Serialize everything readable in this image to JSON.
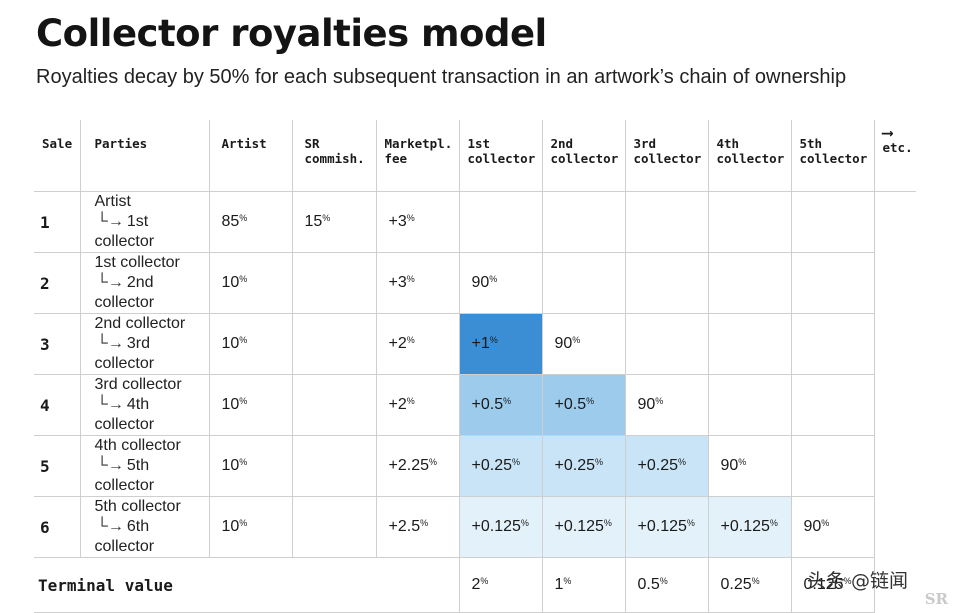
{
  "title": "Collector royalties model",
  "subtitle": "Royalties decay by 50% for each subsequent transaction in an artwork’s chain of ownership",
  "headers": {
    "sale": "Sale",
    "parties": "Parties",
    "artist": "Artist",
    "sr_line1": "SR",
    "sr_line2": "commish.",
    "mkt_line1": "Marketpl.",
    "mkt_line2": "fee",
    "c1_line1": "1st",
    "c1_line2": "collector",
    "c2_line1": "2nd",
    "c2_line2": "collector",
    "c3_line1": "3rd",
    "c3_line2": "collector",
    "c4_line1": "4th",
    "c4_line2": "collector",
    "c5_line1": "5th",
    "c5_line2": "collector",
    "etc_arrow": "⟶",
    "etc": "etc."
  },
  "rows": [
    {
      "sale": "1",
      "from": "Artist",
      "to": "1st collector",
      "artist": "85",
      "sr": "15",
      "mkt": "+3",
      "c1": "",
      "c2": "",
      "c3": "",
      "c4": "",
      "c5": ""
    },
    {
      "sale": "2",
      "from": "1st collector",
      "to": "2nd collector",
      "artist": "10",
      "sr": "",
      "mkt": "+3",
      "c1": "90",
      "c2": "",
      "c3": "",
      "c4": "",
      "c5": ""
    },
    {
      "sale": "3",
      "from": "2nd collector",
      "to": "3rd collector",
      "artist": "10",
      "sr": "",
      "mkt": "+2",
      "c1": "+1",
      "c2": "90",
      "c3": "",
      "c4": "",
      "c5": ""
    },
    {
      "sale": "4",
      "from": "3rd collector",
      "to": "4th collector",
      "artist": "10",
      "sr": "",
      "mkt": "+2",
      "c1": "+0.5",
      "c2": "+0.5",
      "c3": "90",
      "c4": "",
      "c5": ""
    },
    {
      "sale": "5",
      "from": "4th collector",
      "to": "5th collector",
      "artist": "10",
      "sr": "",
      "mkt": "+2.25",
      "c1": "+0.25",
      "c2": "+0.25",
      "c3": "+0.25",
      "c4": "90",
      "c5": ""
    },
    {
      "sale": "6",
      "from": "5th collector",
      "to": "6th collector",
      "artist": "10",
      "sr": "",
      "mkt": "+2.5",
      "c1": "+0.125",
      "c2": "+0.125",
      "c3": "+0.125",
      "c4": "+0.125",
      "c5": "90"
    }
  ],
  "terminal": {
    "label": "Terminal value",
    "c1": "2",
    "c2": "1",
    "c3": "0.5",
    "c4": "0.25",
    "c5": "0.125"
  },
  "percent_sign": "%",
  "sub_arrow": "└→",
  "colors": {
    "shade_1": "#3b8ed4",
    "shade_2": "#9ccbeb",
    "shade_3": "#c8e4f6",
    "shade_4": "#e3f1fb",
    "grid_line": "#cfcfcf"
  },
  "watermark": "头条 @链闻",
  "sr_logo": "SR"
}
